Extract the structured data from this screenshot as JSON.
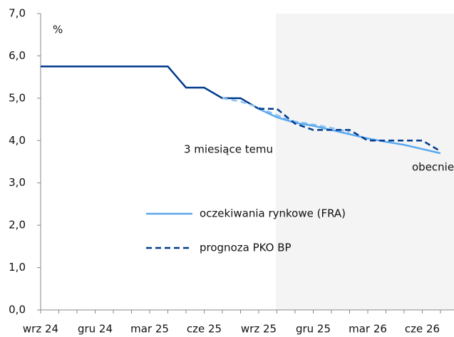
{
  "chart_data": {
    "type": "line",
    "y_unit_label": "%",
    "categories": [
      "wrz 24",
      null,
      null,
      "gru 24",
      null,
      null,
      "mar 25",
      null,
      null,
      "cze 25",
      null,
      null,
      "wrz 25",
      null,
      null,
      "gru 25",
      null,
      null,
      "mar 26",
      null,
      null,
      "cze 26",
      null
    ],
    "series": [
      {
        "color": "#003a8c",
        "dash": false,
        "values": [
          5.75,
          5.75,
          5.75,
          5.75,
          5.75,
          5.75,
          5.75,
          5.75,
          5.25,
          5.25,
          5.0,
          5.0,
          4.75,
          null,
          null,
          null,
          null,
          null,
          null,
          null,
          null,
          null,
          null
        ]
      },
      {
        "color": "#8cc4f4",
        "dash": true,
        "values": [
          null,
          null,
          null,
          null,
          null,
          null,
          null,
          null,
          null,
          null,
          5.0,
          4.92,
          4.78,
          4.6,
          4.45,
          4.38,
          4.3,
          4.2,
          null,
          null,
          null,
          null,
          null
        ]
      },
      {
        "name": "oczekiwania rynkowe (FRA)",
        "color": "#5aa7ef",
        "dash": false,
        "values": [
          null,
          null,
          null,
          null,
          null,
          null,
          null,
          null,
          null,
          null,
          null,
          null,
          4.75,
          4.55,
          4.42,
          4.35,
          4.25,
          4.15,
          4.05,
          3.97,
          3.9,
          3.8,
          3.7
        ]
      },
      {
        "name": "prognoza PKO BP",
        "color": "#003a8c",
        "dash": true,
        "values": [
          null,
          null,
          null,
          null,
          null,
          null,
          null,
          null,
          null,
          null,
          null,
          null,
          4.75,
          4.75,
          4.4,
          4.25,
          4.25,
          4.25,
          4.0,
          4.0,
          4.0,
          4.0,
          3.75
        ]
      }
    ],
    "annotations": [
      "3 miesiące temu",
      "obecnie"
    ],
    "ylim": [
      0,
      7
    ],
    "yticks": [
      {
        "value": 0,
        "label": "0,0"
      },
      {
        "value": 1,
        "label": "1,0"
      },
      {
        "value": 2,
        "label": "2,0"
      },
      {
        "value": 3,
        "label": "3,0"
      },
      {
        "value": 4,
        "label": "4,0"
      },
      {
        "value": 5,
        "label": "5,0"
      },
      {
        "value": 6,
        "label": "6,0"
      },
      {
        "value": 7,
        "label": "7,0"
      }
    ]
  }
}
